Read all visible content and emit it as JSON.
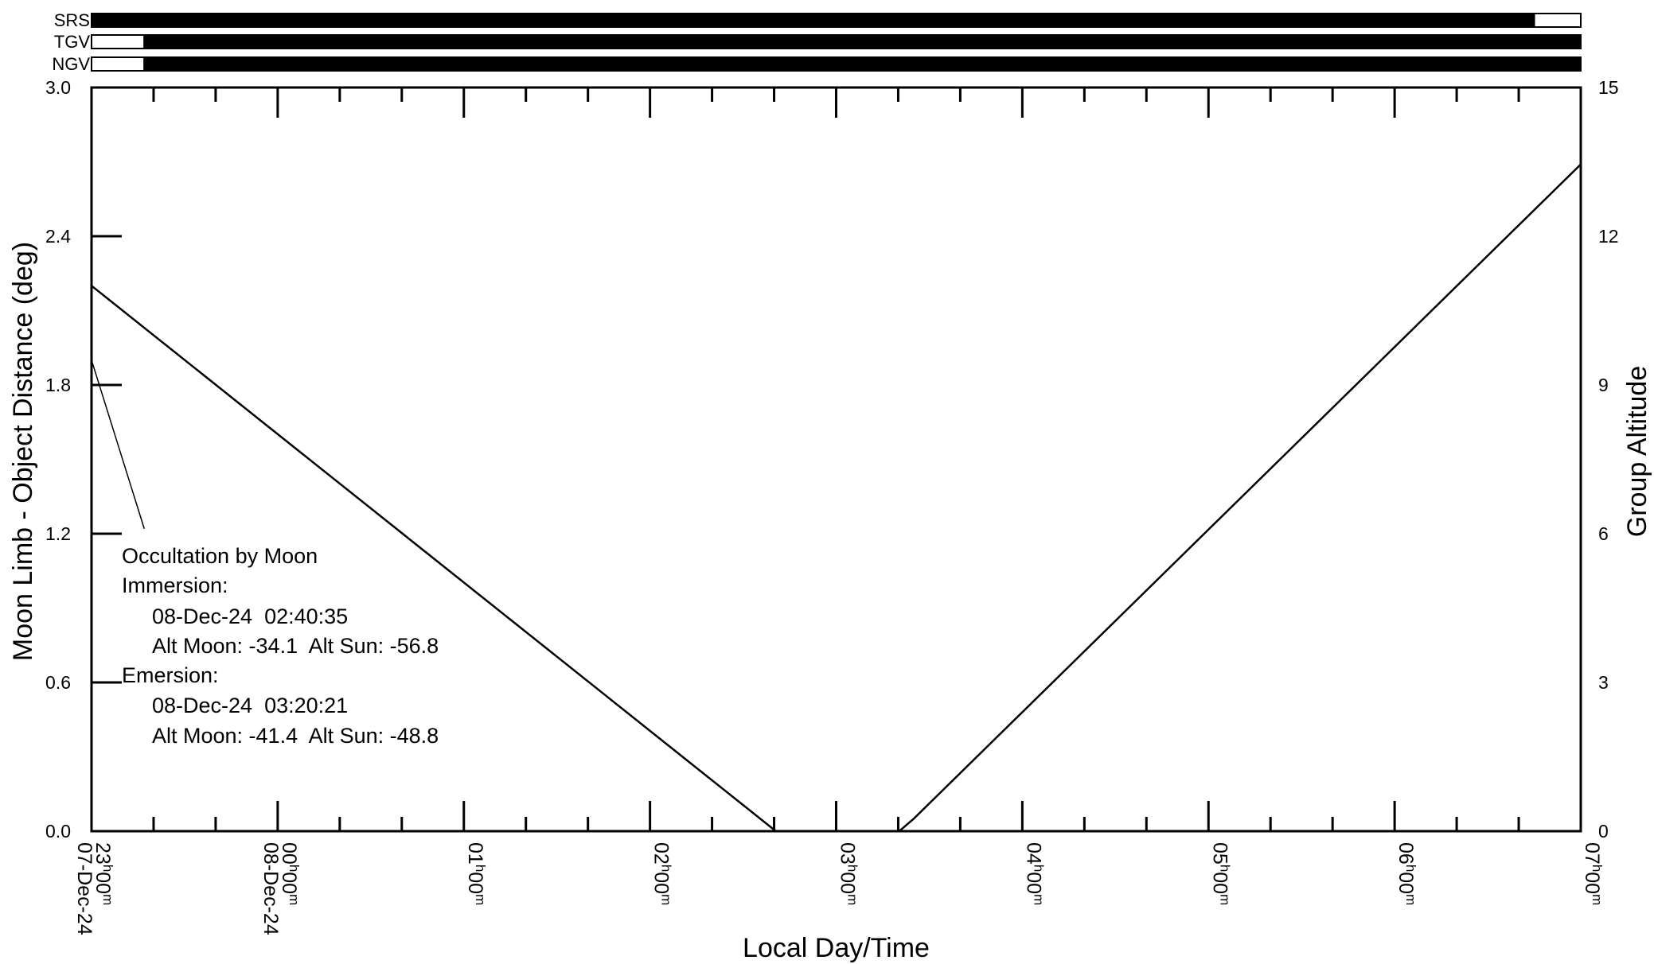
{
  "chart_data": {
    "type": "line",
    "xlabel": "Local Day/Time",
    "ylabel": "Moon Limb - Object Distance (deg)",
    "y2label": "Group Altitude",
    "xlim": [
      "2024-12-07T23:00",
      "2024-12-08T07:00"
    ],
    "ylim": [
      0,
      3.0
    ],
    "y2lim": [
      0,
      15
    ],
    "y_ticks": [
      "0.0",
      "0.6",
      "1.2",
      "1.8",
      "2.4",
      "3.0"
    ],
    "y2_ticks": [
      "0",
      "3",
      "6",
      "9",
      "12",
      "15"
    ],
    "x_hour_ticks": [
      {
        "h": "23",
        "m": "00",
        "t": "2024-12-07T23:00"
      },
      {
        "h": "00",
        "m": "00",
        "t": "2024-12-08T00:00"
      },
      {
        "h": "01",
        "m": "00",
        "t": "2024-12-08T01:00"
      },
      {
        "h": "02",
        "m": "00",
        "t": "2024-12-08T02:00"
      },
      {
        "h": "03",
        "m": "00",
        "t": "2024-12-08T03:00"
      },
      {
        "h": "04",
        "m": "00",
        "t": "2024-12-08T04:00"
      },
      {
        "h": "05",
        "m": "00",
        "t": "2024-12-08T05:00"
      },
      {
        "h": "06",
        "m": "00",
        "t": "2024-12-08T06:00"
      },
      {
        "h": "07",
        "m": "00",
        "t": "2024-12-08T07:00"
      }
    ],
    "x_date_labels": [
      {
        "label": "07-Dec-24",
        "t": "2024-12-07T23:00"
      },
      {
        "label": "08-Dec-24",
        "t": "2024-12-08T00:00"
      }
    ],
    "series": [
      {
        "axis": "left",
        "points": [
          {
            "t": "2024-12-07T23:00",
            "y": 2.2
          },
          {
            "t": "2024-12-08T02:40:35",
            "y": 0.0
          },
          {
            "t": "2024-12-08T03:20:21",
            "y": 0.0
          },
          {
            "t": "2024-12-08T03:25",
            "y": 0.05
          },
          {
            "t": "2024-12-08T07:00",
            "y": 2.69
          }
        ]
      }
    ],
    "visibility_bars": [
      {
        "label": "SRS",
        "segments": [
          {
            "start": "2024-12-07T23:00",
            "end": "2024-12-08T06:45",
            "state": "filled"
          },
          {
            "start": "2024-12-08T06:45",
            "end": "2024-12-08T07:00",
            "state": "open"
          }
        ]
      },
      {
        "label": "TGV",
        "segments": [
          {
            "start": "2024-12-07T23:00",
            "end": "2024-12-07T23:17",
            "state": "open"
          },
          {
            "start": "2024-12-07T23:17",
            "end": "2024-12-08T07:00",
            "state": "filled"
          }
        ]
      },
      {
        "label": "NGV",
        "segments": [
          {
            "start": "2024-12-07T23:00",
            "end": "2024-12-07T23:17",
            "state": "open"
          },
          {
            "start": "2024-12-07T23:17",
            "end": "2024-12-08T07:00",
            "state": "filled"
          }
        ]
      }
    ],
    "annotation": {
      "pointer_from": {
        "t": "2024-12-07T23:00",
        "y": 1.9
      },
      "pointer_to": {
        "t": "2024-12-07T23:17",
        "y": 1.22
      },
      "lines": [
        "Occultation by Moon",
        "Immersion:",
        "08-Dec-24  02:40:35",
        "Alt Moon: -34.1  Alt Sun: -56.8",
        "Emersion:",
        "08-Dec-24  03:20:21",
        "Alt Moon: -41.4  Alt Sun: -48.8"
      ]
    },
    "grid": false,
    "legend": "none"
  }
}
